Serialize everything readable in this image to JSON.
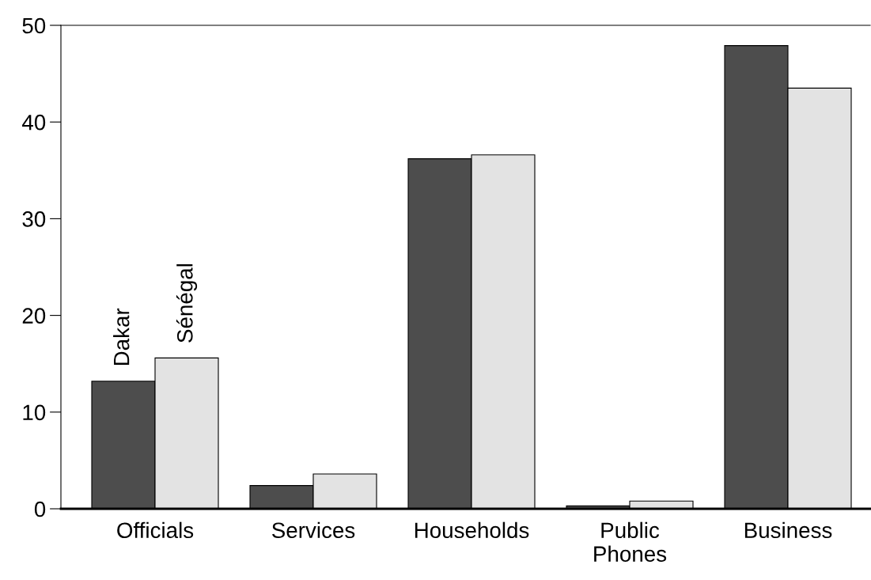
{
  "chart_data": {
    "type": "bar",
    "categories": [
      "Officials",
      "Services",
      "Households",
      "Public\nPhones",
      "Business"
    ],
    "series": [
      {
        "name": "Dakar",
        "color": "#4d4d4d",
        "values": [
          13.2,
          2.4,
          36.2,
          0.3,
          47.9
        ]
      },
      {
        "name": "Sénégal",
        "color": "#e3e3e3",
        "values": [
          15.6,
          3.6,
          36.6,
          0.8,
          43.5
        ]
      }
    ],
    "ylim": [
      0,
      50
    ],
    "yticks": [
      0,
      10,
      20,
      30,
      40,
      50
    ],
    "grid": false,
    "legend": false
  }
}
